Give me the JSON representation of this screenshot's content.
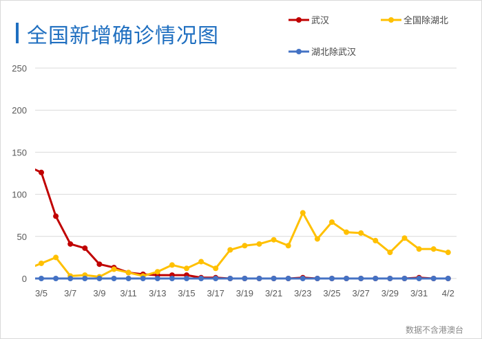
{
  "title": "全国新增确诊情况图",
  "footer": "数据不含港澳台",
  "chart_data": {
    "type": "line",
    "title": "全国新增确诊情况图",
    "ylim": [
      0,
      250
    ],
    "yticks": [
      0,
      50,
      100,
      150,
      200,
      250
    ],
    "grid": true,
    "legend": "top-right",
    "x": [
      "3/4",
      "3/5",
      "3/6",
      "3/7",
      "3/8",
      "3/9",
      "3/10",
      "3/11",
      "3/12",
      "3/13",
      "3/14",
      "3/15",
      "3/16",
      "3/17",
      "3/18",
      "3/19",
      "3/20",
      "3/21",
      "3/22",
      "3/23",
      "3/24",
      "3/25",
      "3/26",
      "3/27",
      "3/28",
      "3/29",
      "3/30",
      "3/31",
      "4/1",
      "4/2"
    ],
    "xtick_labels": [
      "3/5",
      "3/7",
      "3/9",
      "3/11",
      "3/13",
      "3/15",
      "3/17",
      "3/19",
      "3/21",
      "3/23",
      "3/25",
      "3/27",
      "3/29",
      "3/31",
      "4/2"
    ],
    "series": [
      {
        "name": "武汉",
        "color": "#c00000",
        "values": [
          134,
          126,
          74,
          41,
          36,
          17,
          13,
          7,
          5,
          4,
          4,
          4,
          1,
          1,
          0,
          0,
          0,
          0,
          0,
          1,
          0,
          0,
          0,
          0,
          0,
          0,
          0,
          1,
          0,
          0
        ]
      },
      {
        "name": "全国除湖北",
        "color": "#ffc000",
        "values": [
          11,
          18,
          25,
          3,
          4,
          2,
          11,
          7,
          3,
          8,
          16,
          12,
          20,
          12,
          34,
          39,
          41,
          46,
          39,
          78,
          47,
          67,
          55,
          54,
          45,
          31,
          48,
          35,
          35,
          31
        ]
      },
      {
        "name": "湖北除武汉",
        "color": "#4472c4",
        "values": [
          0,
          0,
          0,
          0,
          0,
          0,
          0,
          0,
          0,
          0,
          0,
          0,
          0,
          0,
          0,
          0,
          0,
          0,
          0,
          0,
          0,
          0,
          0,
          0,
          0,
          0,
          0,
          0,
          0,
          0
        ]
      }
    ]
  }
}
